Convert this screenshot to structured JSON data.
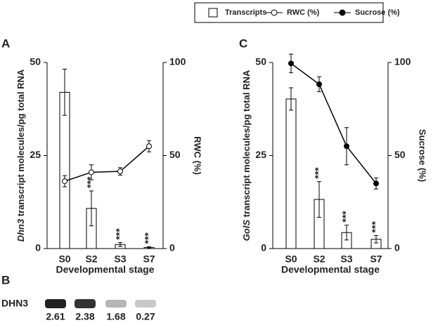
{
  "panels": [
    "A",
    "B",
    "C"
  ],
  "blot": {
    "label": "DHN3",
    "values": [
      2.61,
      2.38,
      1.68,
      0.27
    ]
  },
  "chart_data": [
    {
      "type": "bar-line",
      "y_label_gene": "Dhn3",
      "y_label": "transcript molecules/pg total RNA",
      "y2_label": "RWC (%)",
      "x_label": "Developmental stage",
      "categories": [
        "S0",
        "S2",
        "S3",
        "S7"
      ],
      "ylim": [
        0,
        50
      ],
      "yticks": [
        0,
        25,
        50
      ],
      "y2lim": [
        0,
        100
      ],
      "y2ticks": [
        0,
        50,
        100
      ],
      "series": [
        {
          "name": "Transcripts",
          "kind": "bar",
          "color": "#000000",
          "fill": "#ffffff",
          "values": [
            42,
            10.8,
            1.1,
            0.3
          ],
          "errors": [
            6.2,
            4.7,
            0.5,
            0.2
          ]
        },
        {
          "name": "RWC (%)",
          "kind": "line",
          "axis": "y2",
          "color": "#000000",
          "fill": "#ffffff",
          "values": [
            36.2,
            41,
            41.5,
            55
          ],
          "errors": [
            3,
            4,
            2,
            3
          ]
        }
      ],
      "significance": [
        null,
        "***",
        "***",
        "***"
      ]
    },
    {
      "type": "bar-line",
      "y_label_gene": "GolS",
      "y_label": "transcript molecules/pg total RNA",
      "y2_label": "Sucrose (%)",
      "x_label": "Developmental stage",
      "categories": [
        "S0",
        "S2",
        "S3",
        "S7"
      ],
      "ylim": [
        0,
        50
      ],
      "yticks": [
        0,
        25,
        50
      ],
      "y2lim": [
        0,
        100
      ],
      "y2ticks": [
        0,
        50,
        100
      ],
      "series": [
        {
          "name": "Transcripts",
          "kind": "bar",
          "color": "#000000",
          "fill": "#ffffff",
          "values": [
            40.2,
            13.2,
            4.3,
            2.5
          ],
          "errors": [
            3,
            4.8,
            2,
            1
          ]
        },
        {
          "name": "Sucrose (%)",
          "kind": "line",
          "axis": "y2",
          "color": "#000000",
          "fill": "#000000",
          "values": [
            99.5,
            88.3,
            55,
            35
          ],
          "errors": [
            5,
            4,
            10,
            3
          ]
        }
      ],
      "significance": [
        null,
        "***",
        "***",
        "***"
      ]
    }
  ]
}
